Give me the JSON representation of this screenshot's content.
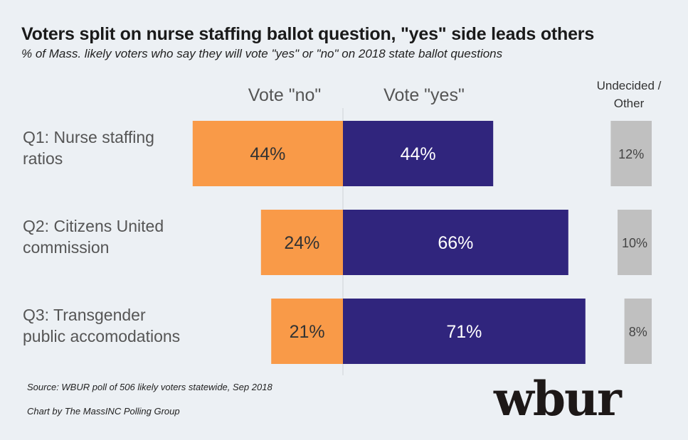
{
  "title": "Voters split on nurse staffing ballot question, \"yes\" side leads others",
  "subtitle": "% of Mass. likely voters who say they will vote \"yes\" or \"no\" on 2018 state ballot questions",
  "source": "Source: WBUR poll of 506 likely voters statewide, Sep 2018",
  "credit": "Chart by The MassINC Polling Group",
  "logo_text": "wbur",
  "colors": {
    "no": "#f99a48",
    "yes": "#30257d",
    "undecided": "#c0c0c0",
    "background": "#ecf0f4"
  },
  "chart_data": {
    "type": "bar",
    "orientation": "horizontal-diverging",
    "categories": [
      [
        "Q1: Nurse staffing",
        "ratios"
      ],
      [
        "Q2: Citizens United",
        "commission"
      ],
      [
        "Q3: Transgender",
        "public accomodations"
      ]
    ],
    "series": [
      {
        "name": "Vote \"no\"",
        "values": [
          44,
          24,
          21
        ],
        "labels": [
          "44%",
          "24%",
          "21%"
        ]
      },
      {
        "name": "Vote \"yes\"",
        "values": [
          44,
          66,
          71
        ],
        "labels": [
          "44%",
          "66%",
          "71%"
        ]
      },
      {
        "name": "Undecided / Other",
        "name_lines": [
          "Undecided /",
          "Other"
        ],
        "values": [
          12,
          10,
          8
        ],
        "labels": [
          "12%",
          "10%",
          "8%"
        ]
      }
    ],
    "legend": "top"
  }
}
